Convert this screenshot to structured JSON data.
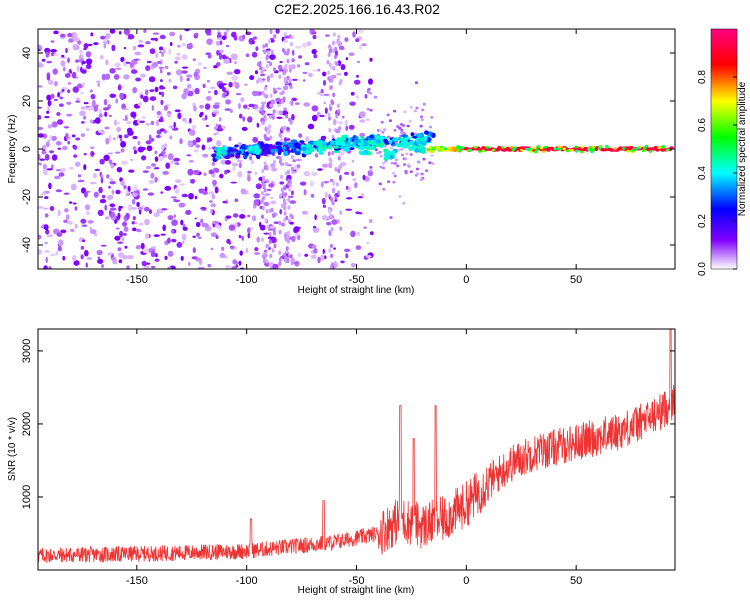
{
  "figure": {
    "title": "C2E2.2025.166.16.43.R02"
  },
  "chart_data": [
    {
      "id": "spectrogram",
      "type": "heatmap",
      "xlabel": "Height of straight line (km)",
      "ylabel": "Frequency (Hz)",
      "xlim": [
        -195,
        95
      ],
      "ylim": [
        -50,
        50
      ],
      "x_ticks": [
        -150,
        -100,
        -50,
        0,
        50
      ],
      "y_ticks": [
        -40,
        -20,
        0,
        20,
        40
      ],
      "colorbar": {
        "label": "Normalized spectral amplitude",
        "range": [
          0,
          1
        ],
        "ticks": [
          0.0,
          0.2,
          0.4,
          0.6,
          0.8
        ],
        "colormap": [
          "#ffffff",
          "#8000ff",
          "#0000ff",
          "#00ffff",
          "#00ff00",
          "#ffff00",
          "#ff0000",
          "#ff0080"
        ]
      },
      "features": {
        "noise_region_x": [
          -195,
          -45
        ],
        "central_line_frequency": 0,
        "strong_line_x": [
          -15,
          95
        ],
        "strong_line_amplitude": 0.95
      },
      "grid": false
    },
    {
      "id": "snr",
      "type": "line",
      "xlabel": "Height of straight line (km)",
      "ylabel": "SNR (10 * v/v)",
      "xlim": [
        -195,
        95
      ],
      "ylim": [
        0,
        3300
      ],
      "x_ticks": [
        -150,
        -100,
        -50,
        0,
        50
      ],
      "y_ticks": [
        1000,
        2000,
        3000
      ],
      "series_color": "#ee3333",
      "trend_points": [
        {
          "x": -195,
          "y": 200
        },
        {
          "x": -150,
          "y": 220
        },
        {
          "x": -100,
          "y": 260
        },
        {
          "x": -80,
          "y": 320
        },
        {
          "x": -60,
          "y": 380
        },
        {
          "x": -40,
          "y": 500
        },
        {
          "x": -30,
          "y": 700
        },
        {
          "x": -20,
          "y": 600
        },
        {
          "x": -10,
          "y": 700
        },
        {
          "x": 0,
          "y": 900
        },
        {
          "x": 10,
          "y": 1200
        },
        {
          "x": 20,
          "y": 1450
        },
        {
          "x": 30,
          "y": 1600
        },
        {
          "x": 50,
          "y": 1750
        },
        {
          "x": 70,
          "y": 1900
        },
        {
          "x": 85,
          "y": 2100
        },
        {
          "x": 95,
          "y": 2300
        }
      ],
      "spikes": [
        {
          "x": -98,
          "y": 700
        },
        {
          "x": -65,
          "y": 950
        },
        {
          "x": -30,
          "y": 2250
        },
        {
          "x": -24,
          "y": 1800
        },
        {
          "x": -14,
          "y": 2250
        },
        {
          "x": 93,
          "y": 3300
        }
      ],
      "grid": false
    }
  ]
}
